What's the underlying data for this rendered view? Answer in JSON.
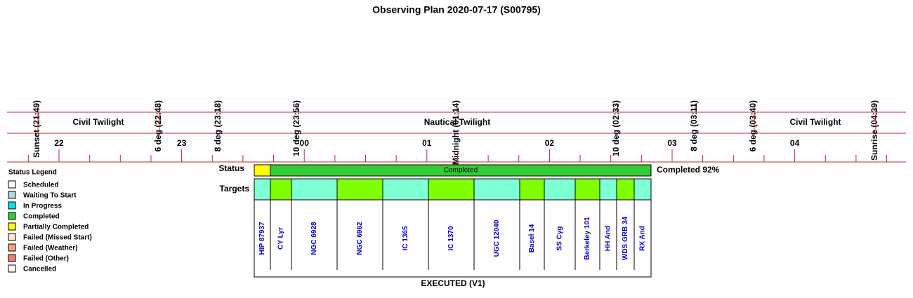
{
  "title": "Observing Plan 2020-07-17 (S00795)",
  "events": [
    "Sunset (21:49)",
    "6 deg (22:48)",
    "8 deg (23:18)",
    "10 deg (23:56)",
    "Midnight (01:14)",
    "10 deg (02:33)",
    "8 deg (03:11)",
    "6 deg (03:40)",
    "Sunrise (04:39)"
  ],
  "bands": [
    "Civil Twilight",
    "Nautical Twilight",
    "Civil Twilight"
  ],
  "hours": [
    "22",
    "23",
    "00",
    "01",
    "02",
    "03",
    "04"
  ],
  "status": {
    "label": "Status",
    "bar_text": "Completed",
    "summary": "Completed 92%",
    "colors": [
      "#ffff00",
      "#32cd32"
    ]
  },
  "targets": {
    "label": "Targets",
    "items": [
      {
        "name": "HIP 87937",
        "color": "#7fffd4"
      },
      {
        "name": "CY Lyr",
        "color": "#7fff00"
      },
      {
        "name": "NGC 6928",
        "color": "#7fffd4"
      },
      {
        "name": "NGC 6962",
        "color": "#7fff00"
      },
      {
        "name": "IC 1365",
        "color": "#7fffd4"
      },
      {
        "name": "IC 1370",
        "color": "#7fff00"
      },
      {
        "name": "UGC 12040",
        "color": "#7fffd4"
      },
      {
        "name": "Basel 14",
        "color": "#7fff00"
      },
      {
        "name": "SS Cyg",
        "color": "#7fffd4"
      },
      {
        "name": "Berkeley 101",
        "color": "#7fff00"
      },
      {
        "name": "HH And",
        "color": "#7fffd4"
      },
      {
        "name": "WDS GRB 34",
        "color": "#7fff00"
      },
      {
        "name": "RX And",
        "color": "#7fffd4"
      }
    ]
  },
  "footer": "EXECUTED (V1)",
  "legend": {
    "title": "Status Legend",
    "items": [
      {
        "label": "Scheduled",
        "color": "#ffffff"
      },
      {
        "label": "Waiting To Start",
        "color": "#add8e6"
      },
      {
        "label": "In Progress",
        "color": "#00e5ee"
      },
      {
        "label": "Completed",
        "color": "#32cd32"
      },
      {
        "label": "Partially Completed",
        "color": "#ffff00"
      },
      {
        "label": "Failed (Missed Start)",
        "color": "#ffe4c4"
      },
      {
        "label": "Failed (Weather)",
        "color": "#ffa07a"
      },
      {
        "label": "Failed (Other)",
        "color": "#f08070"
      },
      {
        "label": "Cancelled",
        "color": "#ffffff"
      }
    ]
  }
}
